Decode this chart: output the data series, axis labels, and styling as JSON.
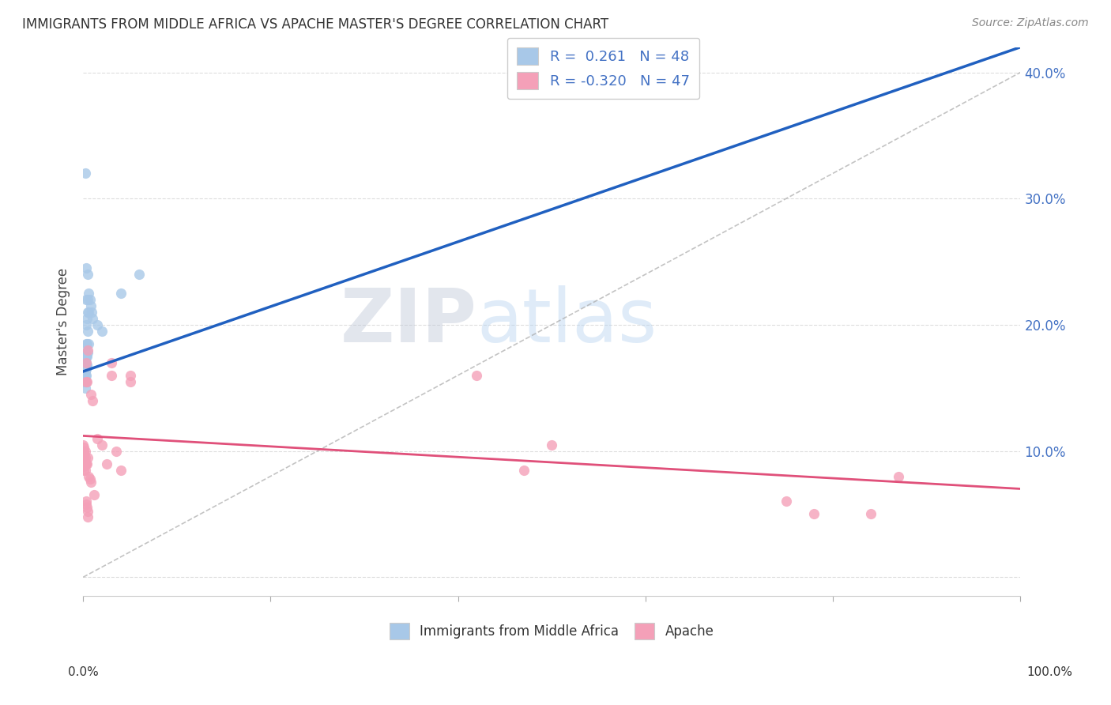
{
  "title": "IMMIGRANTS FROM MIDDLE AFRICA VS APACHE MASTER'S DEGREE CORRELATION CHART",
  "source": "Source: ZipAtlas.com",
  "ylabel": "Master's Degree",
  "blue_R": 0.261,
  "blue_N": 48,
  "pink_R": -0.32,
  "pink_N": 47,
  "blue_color": "#a8c8e8",
  "pink_color": "#f4a0b8",
  "blue_line_color": "#2060c0",
  "pink_line_color": "#e0507a",
  "blue_scatter": [
    [
      0.0,
      0.175
    ],
    [
      0.001,
      0.175
    ],
    [
      0.001,
      0.17
    ],
    [
      0.001,
      0.168
    ],
    [
      0.001,
      0.165
    ],
    [
      0.001,
      0.163
    ],
    [
      0.001,
      0.16
    ],
    [
      0.001,
      0.158
    ],
    [
      0.001,
      0.155
    ],
    [
      0.002,
      0.178
    ],
    [
      0.002,
      0.173
    ],
    [
      0.002,
      0.17
    ],
    [
      0.002,
      0.167
    ],
    [
      0.002,
      0.163
    ],
    [
      0.002,
      0.16
    ],
    [
      0.002,
      0.155
    ],
    [
      0.002,
      0.15
    ],
    [
      0.003,
      0.245
    ],
    [
      0.003,
      0.22
    ],
    [
      0.003,
      0.2
    ],
    [
      0.003,
      0.185
    ],
    [
      0.003,
      0.175
    ],
    [
      0.003,
      0.17
    ],
    [
      0.003,
      0.168
    ],
    [
      0.003,
      0.165
    ],
    [
      0.003,
      0.16
    ],
    [
      0.003,
      0.155
    ],
    [
      0.004,
      0.205
    ],
    [
      0.004,
      0.185
    ],
    [
      0.004,
      0.175
    ],
    [
      0.004,
      0.168
    ],
    [
      0.005,
      0.24
    ],
    [
      0.005,
      0.22
    ],
    [
      0.005,
      0.21
    ],
    [
      0.005,
      0.195
    ],
    [
      0.005,
      0.178
    ],
    [
      0.006,
      0.225
    ],
    [
      0.006,
      0.21
    ],
    [
      0.006,
      0.185
    ],
    [
      0.007,
      0.22
    ],
    [
      0.008,
      0.215
    ],
    [
      0.009,
      0.21
    ],
    [
      0.01,
      0.205
    ],
    [
      0.015,
      0.2
    ],
    [
      0.02,
      0.195
    ],
    [
      0.04,
      0.225
    ],
    [
      0.06,
      0.24
    ],
    [
      0.002,
      0.32
    ]
  ],
  "pink_scatter": [
    [
      0.0,
      0.105
    ],
    [
      0.001,
      0.103
    ],
    [
      0.001,
      0.1
    ],
    [
      0.001,
      0.098
    ],
    [
      0.001,
      0.095
    ],
    [
      0.001,
      0.092
    ],
    [
      0.001,
      0.09
    ],
    [
      0.001,
      0.088
    ],
    [
      0.001,
      0.085
    ],
    [
      0.002,
      0.1
    ],
    [
      0.002,
      0.095
    ],
    [
      0.002,
      0.09
    ],
    [
      0.002,
      0.085
    ],
    [
      0.003,
      0.17
    ],
    [
      0.003,
      0.155
    ],
    [
      0.003,
      0.09
    ],
    [
      0.003,
      0.06
    ],
    [
      0.003,
      0.058
    ],
    [
      0.004,
      0.155
    ],
    [
      0.004,
      0.09
    ],
    [
      0.004,
      0.055
    ],
    [
      0.005,
      0.18
    ],
    [
      0.005,
      0.095
    ],
    [
      0.005,
      0.052
    ],
    [
      0.005,
      0.048
    ],
    [
      0.006,
      0.08
    ],
    [
      0.007,
      0.078
    ],
    [
      0.008,
      0.145
    ],
    [
      0.008,
      0.075
    ],
    [
      0.01,
      0.14
    ],
    [
      0.012,
      0.065
    ],
    [
      0.015,
      0.11
    ],
    [
      0.02,
      0.105
    ],
    [
      0.025,
      0.09
    ],
    [
      0.03,
      0.17
    ],
    [
      0.03,
      0.16
    ],
    [
      0.035,
      0.1
    ],
    [
      0.04,
      0.085
    ],
    [
      0.05,
      0.16
    ],
    [
      0.05,
      0.155
    ],
    [
      0.42,
      0.16
    ],
    [
      0.47,
      0.085
    ],
    [
      0.5,
      0.105
    ],
    [
      0.75,
      0.06
    ],
    [
      0.78,
      0.05
    ],
    [
      0.84,
      0.05
    ],
    [
      0.87,
      0.08
    ]
  ],
  "blue_line_x": [
    0.0,
    1.0
  ],
  "blue_line_y": [
    0.163,
    0.42
  ],
  "pink_line_x": [
    0.0,
    1.0
  ],
  "pink_line_y": [
    0.112,
    0.07
  ],
  "dashed_line_x": [
    0.0,
    1.0
  ],
  "dashed_line_y": [
    0.0,
    0.4
  ],
  "xlim": [
    0.0,
    1.0
  ],
  "ylim": [
    -0.015,
    0.42
  ],
  "yticks": [
    0.0,
    0.1,
    0.2,
    0.3,
    0.4
  ],
  "ytick_labels": [
    "",
    "10.0%",
    "20.0%",
    "30.0%",
    "40.0%"
  ],
  "watermark_zip": "ZIP",
  "watermark_atlas": "atlas",
  "background_color": "#ffffff",
  "grid_color": "#dddddd",
  "legend_text_color": "#4472c4"
}
